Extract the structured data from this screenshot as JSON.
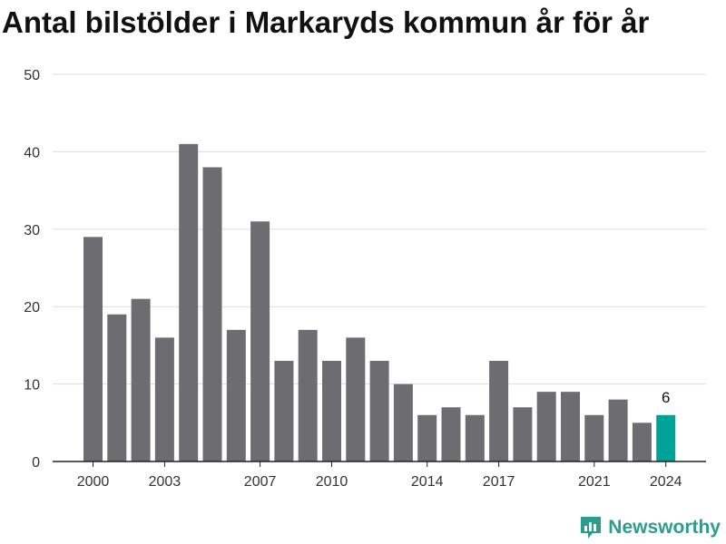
{
  "chart_data": {
    "type": "bar",
    "title": "Antal bilstölder i Markaryds kommun år för år",
    "categories": [
      2000,
      2001,
      2002,
      2003,
      2004,
      2005,
      2006,
      2007,
      2008,
      2009,
      2010,
      2011,
      2012,
      2013,
      2014,
      2015,
      2016,
      2017,
      2018,
      2019,
      2020,
      2021,
      2022,
      2023,
      2024
    ],
    "values": [
      29,
      19,
      21,
      16,
      41,
      38,
      17,
      31,
      13,
      17,
      13,
      16,
      13,
      10,
      6,
      7,
      6,
      13,
      7,
      9,
      9,
      6,
      8,
      5,
      6
    ],
    "x_tick_labels": [
      "2000",
      "2003",
      "2007",
      "2010",
      "2014",
      "2017",
      "2021",
      "2024"
    ],
    "y_ticks": [
      0,
      10,
      20,
      30,
      40,
      50
    ],
    "ylim": [
      0,
      50
    ],
    "xlabel": "",
    "ylabel": "",
    "grid": true,
    "bar_color": "#6d6c71",
    "highlight_color": "#00a39a",
    "highlight_category": 2024,
    "highlight_label": "6"
  },
  "brand": {
    "name": "Newsworthy",
    "color": "#2a9d8f",
    "icon": "newsworthy-logo-icon"
  }
}
